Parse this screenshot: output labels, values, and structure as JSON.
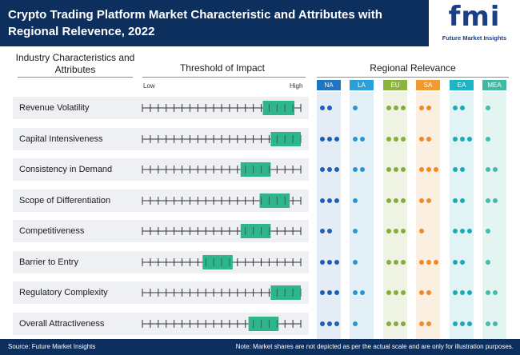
{
  "header": {
    "title": "Crypto Trading Platform Market Characteristic and Attributes with Regional Relevence, 2022",
    "logo_mark": "fmi",
    "logo_text": "Future Market Insights"
  },
  "columns": {
    "industry": "Industry Characteristics and Attributes",
    "threshold": "Threshold of Impact",
    "regional": "Regional Relevance"
  },
  "scale": {
    "low": "Low",
    "high": "High"
  },
  "colors": {
    "band": "#eef0f3",
    "marker": "#2fb58a",
    "tick": "#333333",
    "header_bg": "#0d2f5e"
  },
  "regions": [
    {
      "code": "NA",
      "header_color": "#1f74c4",
      "dot_color": "#1f5fb4",
      "col_bg": "#e4ecf6"
    },
    {
      "code": "LA",
      "header_color": "#2a9fd8",
      "dot_color": "#2a95d0",
      "col_bg": "#e4f0f8"
    },
    {
      "code": "EU",
      "header_color": "#8bb53d",
      "dot_color": "#86ad3a",
      "col_bg": "#eef3e4"
    },
    {
      "code": "SA",
      "header_color": "#f29a2e",
      "dot_color": "#f08a24",
      "col_bg": "#fbefe2"
    },
    {
      "code": "EA",
      "header_color": "#1bb5c6",
      "dot_color": "#1aaab9",
      "col_bg": "#e2f3f5"
    },
    {
      "code": "MEA",
      "header_color": "#3fb8a4",
      "dot_color": "#44bba9",
      "col_bg": "#e3f4f1"
    }
  ],
  "chart_data": {
    "type": "table",
    "title": "Crypto Trading Platform Market Characteristic and Attributes with Regional Relevence, 2022",
    "scale_ticks": 21,
    "rows": [
      {
        "attribute": "Revenue Volatility",
        "impact_low": 0.76,
        "impact_high": 0.96,
        "regional": [
          2,
          1,
          3,
          2,
          2,
          1
        ]
      },
      {
        "attribute": "Capital Intensiveness",
        "impact_low": 0.81,
        "impact_high": 1.0,
        "regional": [
          3,
          2,
          3,
          2,
          3,
          1
        ]
      },
      {
        "attribute": "Consistency in Demand",
        "impact_low": 0.62,
        "impact_high": 0.81,
        "regional": [
          3,
          2,
          3,
          3,
          2,
          2
        ]
      },
      {
        "attribute": "Scope of Differentiation",
        "impact_low": 0.74,
        "impact_high": 0.93,
        "regional": [
          3,
          1,
          3,
          2,
          2,
          2
        ]
      },
      {
        "attribute": "Competitiveness",
        "impact_low": 0.62,
        "impact_high": 0.81,
        "regional": [
          2,
          1,
          3,
          1,
          3,
          1
        ]
      },
      {
        "attribute": "Barrier to Entry",
        "impact_low": 0.38,
        "impact_high": 0.57,
        "regional": [
          3,
          1,
          3,
          3,
          2,
          1
        ]
      },
      {
        "attribute": "Regulatory Complexity",
        "impact_low": 0.81,
        "impact_high": 1.0,
        "regional": [
          3,
          2,
          3,
          2,
          3,
          2
        ]
      },
      {
        "attribute": "Overall Attractiveness",
        "impact_low": 0.67,
        "impact_high": 0.86,
        "regional": [
          3,
          1,
          3,
          2,
          3,
          2
        ]
      }
    ]
  },
  "footer": {
    "source": "Source: Future Market Insights",
    "note": "Note: Market shares are not depicted as per the actual scale and are only for illustration purposes."
  }
}
